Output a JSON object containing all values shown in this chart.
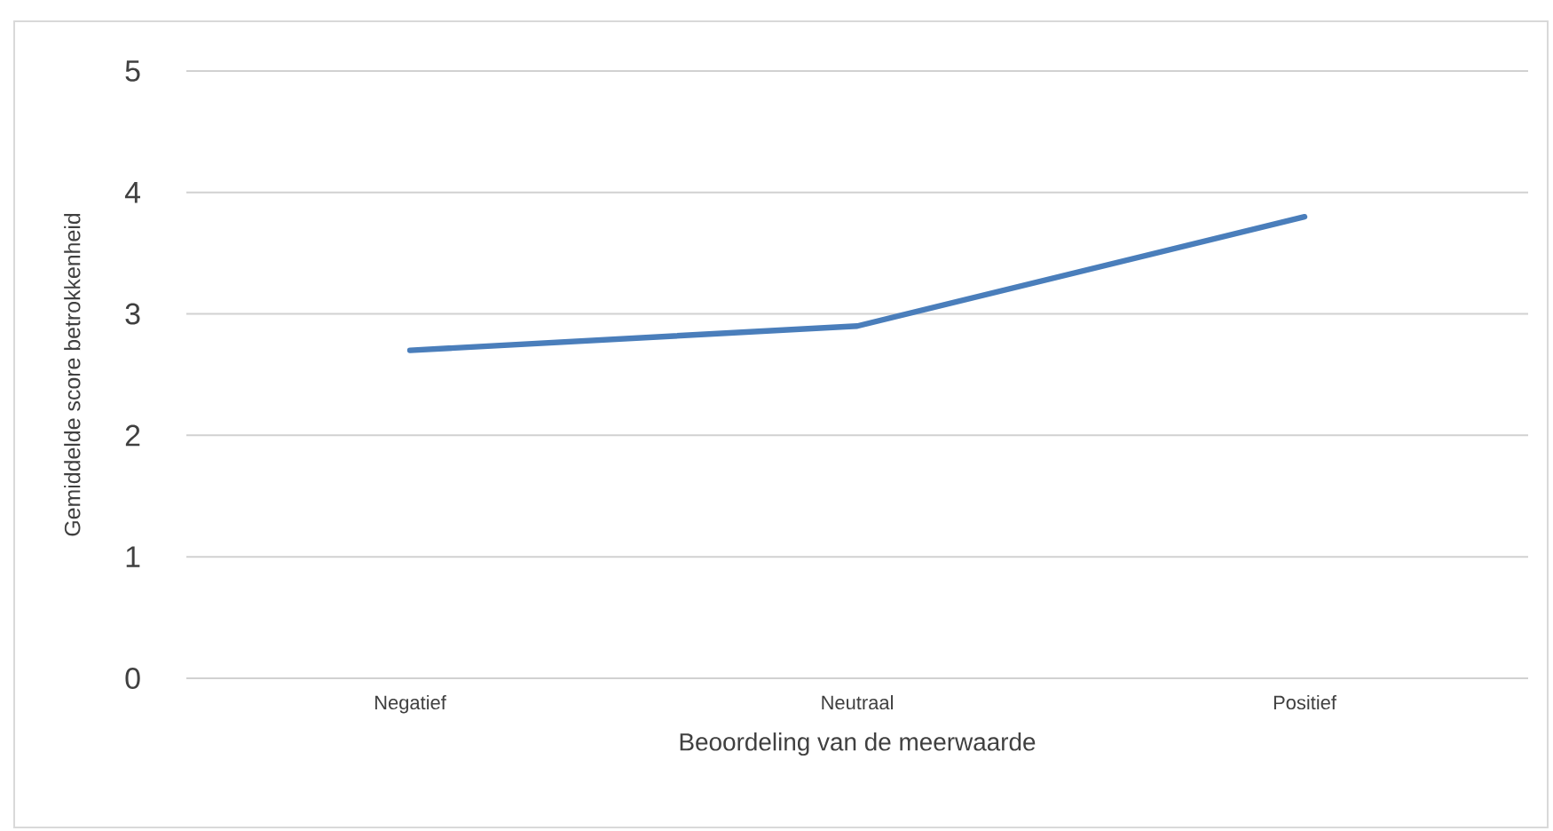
{
  "chart_data": {
    "type": "line",
    "xlabel": "Beoordeling van de meerwaarde",
    "ylabel": "Gemiddelde score betrokkenheid",
    "categories": [
      "Negatief",
      "Neutraal",
      "Positief"
    ],
    "series": [
      {
        "color": "#4a7ebb",
        "values": [
          2.7,
          2.9,
          3.8
        ]
      }
    ],
    "ylim": [
      0,
      5
    ],
    "yticks": [
      0,
      1,
      2,
      3,
      4,
      5
    ],
    "grid": "y"
  }
}
